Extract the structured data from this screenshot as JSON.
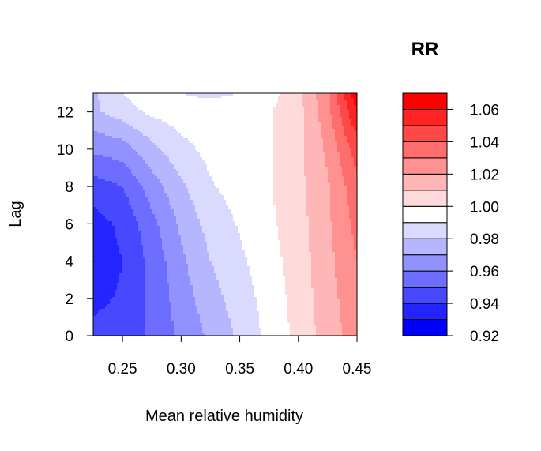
{
  "chart_data": {
    "type": "heatmap",
    "title": "",
    "xlabel": "Mean relative humidity",
    "ylabel": "Lag",
    "xlim": [
      0.225,
      0.45
    ],
    "ylim": [
      0,
      13
    ],
    "x_ticks": [
      "0.25",
      "0.30",
      "0.35",
      "0.40",
      "0.45"
    ],
    "x_tick_values": [
      0.25,
      0.3,
      0.35,
      0.4,
      0.45
    ],
    "y_ticks": [
      "0",
      "2",
      "4",
      "6",
      "8",
      "10",
      "12"
    ],
    "y_tick_values": [
      0,
      2,
      4,
      6,
      8,
      10,
      12
    ],
    "legend": {
      "title": "RR",
      "placement": "right",
      "labels": [
        "0.92",
        "0.94",
        "0.96",
        "0.98",
        "1.00",
        "1.02",
        "1.04",
        "1.06"
      ],
      "label_values": [
        0.92,
        0.94,
        0.96,
        0.98,
        1.0,
        1.02,
        1.04,
        1.06
      ],
      "breaks": [
        0.92,
        0.93,
        0.94,
        0.95,
        0.96,
        0.97,
        0.98,
        0.99,
        1.0,
        1.01,
        1.02,
        1.03,
        1.04,
        1.05,
        1.06,
        1.07
      ],
      "colors": [
        "#0000FF",
        "#2424FF",
        "#4848FF",
        "#6D6DFF",
        "#9191FF",
        "#B6B6FF",
        "#DADAFF",
        "#FFFFFF",
        "#FFDADA",
        "#FFB6B6",
        "#FF9191",
        "#FF6D6D",
        "#FF4848",
        "#FF2424",
        "#FF0000"
      ]
    },
    "surface": {
      "description_of_model": "RR as function of humidity (x) and lag (y)",
      "x_grid": [
        0.225,
        0.25,
        0.275,
        0.3,
        0.325,
        0.35,
        0.375,
        0.4,
        0.425,
        0.45
      ],
      "y_grid": [
        0,
        2,
        4,
        6,
        8,
        10,
        12,
        13
      ],
      "rr": [
        [
          0.942,
          0.938,
          0.935,
          0.936,
          0.945,
          0.962,
          0.978,
          0.978
        ],
        [
          0.944,
          0.941,
          0.94,
          0.942,
          0.95,
          0.965,
          0.985,
          0.99
        ],
        [
          0.952,
          0.952,
          0.953,
          0.957,
          0.965,
          0.977,
          0.992,
          0.998
        ],
        [
          0.962,
          0.965,
          0.968,
          0.972,
          0.978,
          0.987,
          0.995,
          0.99
        ],
        [
          0.972,
          0.976,
          0.98,
          0.984,
          0.989,
          0.993,
          0.995,
          0.988
        ],
        [
          0.982,
          0.985,
          0.988,
          0.991,
          0.994,
          0.996,
          0.996,
          0.99
        ],
        [
          0.993,
          0.994,
          0.996,
          0.998,
          0.999,
          0.999,
          0.999,
          0.996
        ],
        [
          1.003,
          1.004,
          1.005,
          1.006,
          1.007,
          1.007,
          1.007,
          1.007
        ],
        [
          1.015,
          1.016,
          1.017,
          1.018,
          1.019,
          1.022,
          1.026,
          1.028
        ],
        [
          1.025,
          1.027,
          1.03,
          1.033,
          1.037,
          1.045,
          1.06,
          1.068
        ]
      ]
    }
  }
}
